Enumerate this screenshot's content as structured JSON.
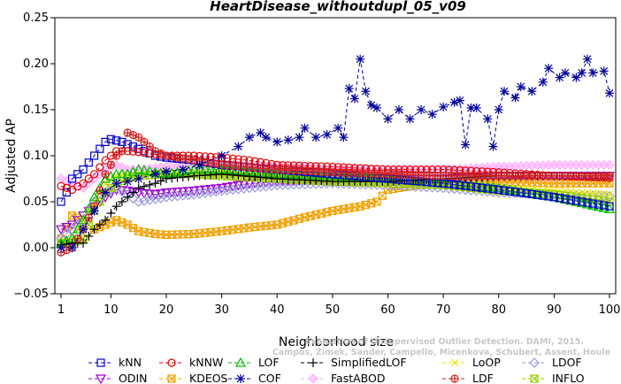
{
  "chart_data": {
    "type": "line",
    "title": "HeartDisease_withoutdupl_05_v09",
    "xlabel": "Neighborhood size",
    "ylabel": "Adjusted AP",
    "xlim": [
      1,
      100
    ],
    "ylim": [
      -0.05,
      0.25
    ],
    "xticks": [
      1,
      10,
      20,
      30,
      40,
      50,
      60,
      70,
      80,
      90,
      100
    ],
    "yticks": [
      -0.05,
      0.0,
      0.05,
      0.1,
      0.15,
      0.2,
      0.25
    ],
    "ytick_labels": [
      "−0.05",
      "0.00",
      "0.05",
      "0.10",
      "0.15",
      "0.20",
      "0.25"
    ],
    "watermark": [
      "Evaluation of Unsupervised Outlier Detection. DAMI, 2015.",
      "Campos, Zimek, Sander, Campello, Micenkova, Schubert, Assent, Houle"
    ],
    "legend_position": "bottom",
    "series": [
      {
        "name": "kNN",
        "color": "#0000cc",
        "marker": "square",
        "dash": "4,3",
        "points": [
          [
            1,
            0.05
          ],
          [
            2,
            0.06
          ],
          [
            3,
            0.075
          ],
          [
            5,
            0.085
          ],
          [
            7,
            0.1
          ],
          [
            9,
            0.115
          ],
          [
            10,
            0.118
          ],
          [
            12,
            0.115
          ],
          [
            14,
            0.11
          ],
          [
            16,
            0.105
          ],
          [
            18,
            0.1
          ],
          [
            20,
            0.098
          ],
          [
            25,
            0.095
          ],
          [
            30,
            0.09
          ],
          [
            40,
            0.085
          ],
          [
            50,
            0.08
          ],
          [
            60,
            0.075
          ],
          [
            70,
            0.07
          ],
          [
            80,
            0.063
          ],
          [
            90,
            0.055
          ],
          [
            100,
            0.045
          ]
        ]
      },
      {
        "name": "kNNW",
        "color": "#e00000",
        "marker": "circle",
        "dash": "4,3",
        "points": [
          [
            1,
            0.067
          ],
          [
            3,
            0.063
          ],
          [
            5,
            0.07
          ],
          [
            7,
            0.08
          ],
          [
            9,
            0.095
          ],
          [
            11,
            0.105
          ],
          [
            13,
            0.105
          ],
          [
            15,
            0.104
          ],
          [
            20,
            0.1
          ],
          [
            25,
            0.1
          ],
          [
            30,
            0.098
          ],
          [
            35,
            0.095
          ],
          [
            40,
            0.09
          ],
          [
            50,
            0.088
          ],
          [
            60,
            0.085
          ],
          [
            70,
            0.085
          ],
          [
            80,
            0.082
          ],
          [
            90,
            0.078
          ],
          [
            100,
            0.076
          ]
        ]
      },
      {
        "name": "LOF",
        "color": "#00bb00",
        "marker": "triangle",
        "dash": "4,3",
        "points": [
          [
            1,
            0.005
          ],
          [
            3,
            0.01
          ],
          [
            5,
            0.03
          ],
          [
            7,
            0.055
          ],
          [
            9,
            0.075
          ],
          [
            11,
            0.08
          ],
          [
            13,
            0.08
          ],
          [
            15,
            0.085
          ],
          [
            20,
            0.08
          ],
          [
            25,
            0.085
          ],
          [
            30,
            0.085
          ],
          [
            40,
            0.08
          ],
          [
            50,
            0.078
          ],
          [
            60,
            0.075
          ],
          [
            70,
            0.07
          ],
          [
            80,
            0.065
          ],
          [
            90,
            0.055
          ],
          [
            100,
            0.042
          ]
        ]
      },
      {
        "name": "SimplifiedLOF",
        "color": "#000000",
        "marker": "plus",
        "dash": "4,3",
        "points": [
          [
            1,
            0.003
          ],
          [
            3,
            0.005
          ],
          [
            5,
            0.005
          ],
          [
            7,
            0.02
          ],
          [
            9,
            0.03
          ],
          [
            11,
            0.045
          ],
          [
            13,
            0.055
          ],
          [
            15,
            0.065
          ],
          [
            18,
            0.07
          ],
          [
            20,
            0.075
          ],
          [
            25,
            0.078
          ],
          [
            30,
            0.08
          ],
          [
            40,
            0.075
          ],
          [
            50,
            0.072
          ],
          [
            60,
            0.072
          ],
          [
            70,
            0.075
          ],
          [
            80,
            0.078
          ],
          [
            90,
            0.078
          ],
          [
            100,
            0.078
          ]
        ]
      },
      {
        "name": "LoOP",
        "color": "#e8e800",
        "marker": "x",
        "dash": "4,3",
        "points": [
          [
            1,
            0.005
          ],
          [
            3,
            0.01
          ],
          [
            5,
            0.03
          ],
          [
            7,
            0.05
          ],
          [
            9,
            0.07
          ],
          [
            11,
            0.078
          ],
          [
            15,
            0.08
          ],
          [
            20,
            0.08
          ],
          [
            25,
            0.08
          ],
          [
            30,
            0.082
          ],
          [
            40,
            0.078
          ],
          [
            50,
            0.075
          ],
          [
            60,
            0.073
          ],
          [
            70,
            0.07
          ],
          [
            80,
            0.065
          ],
          [
            90,
            0.062
          ],
          [
            100,
            0.058
          ]
        ]
      },
      {
        "name": "LDOF",
        "color": "#9999dd",
        "marker": "diamond",
        "dash": "4,3",
        "points": [
          [
            1,
            0.01
          ],
          [
            3,
            0.02
          ],
          [
            5,
            0.03
          ],
          [
            7,
            0.05
          ],
          [
            9,
            0.06
          ],
          [
            11,
            0.065
          ],
          [
            15,
            0.05
          ],
          [
            20,
            0.055
          ],
          [
            25,
            0.058
          ],
          [
            30,
            0.062
          ],
          [
            40,
            0.068
          ],
          [
            50,
            0.07
          ],
          [
            60,
            0.068
          ],
          [
            70,
            0.065
          ],
          [
            80,
            0.06
          ],
          [
            90,
            0.058
          ],
          [
            100,
            0.056
          ]
        ]
      },
      {
        "name": "ODIN",
        "color": "#9900cc",
        "marker": "triangle-down",
        "dash": "4,3",
        "points": [
          [
            1,
            0.02
          ],
          [
            3,
            0.025
          ],
          [
            5,
            0.035
          ],
          [
            7,
            0.045
          ],
          [
            9,
            0.055
          ],
          [
            11,
            0.063
          ],
          [
            13,
            0.062
          ],
          [
            15,
            0.06
          ],
          [
            18,
            0.058
          ],
          [
            20,
            0.06
          ],
          [
            25,
            0.062
          ],
          [
            30,
            0.065
          ],
          [
            35,
            0.07
          ],
          [
            40,
            0.072
          ],
          [
            50,
            0.075
          ],
          [
            60,
            0.075
          ],
          [
            70,
            0.075
          ],
          [
            80,
            0.078
          ],
          [
            90,
            0.078
          ],
          [
            100,
            0.078
          ]
        ]
      },
      {
        "name": "KDEOS",
        "color": "#f0a000",
        "marker": "square-x",
        "dash": "4,3",
        "points": [
          [
            1,
            0.01
          ],
          [
            3,
            0.035
          ],
          [
            5,
            0.03
          ],
          [
            7,
            0.02
          ],
          [
            9,
            0.025
          ],
          [
            11,
            0.03
          ],
          [
            13,
            0.025
          ],
          [
            15,
            0.018
          ],
          [
            18,
            0.015
          ],
          [
            20,
            0.014
          ],
          [
            25,
            0.015
          ],
          [
            30,
            0.018
          ],
          [
            35,
            0.022
          ],
          [
            40,
            0.025
          ],
          [
            45,
            0.033
          ],
          [
            50,
            0.04
          ],
          [
            55,
            0.045
          ],
          [
            58,
            0.05
          ],
          [
            60,
            0.063
          ],
          [
            65,
            0.068
          ],
          [
            70,
            0.07
          ],
          [
            80,
            0.072
          ],
          [
            90,
            0.07
          ],
          [
            100,
            0.07
          ]
        ]
      },
      {
        "name": "COF",
        "color": "#000099",
        "marker": "asterisk",
        "dash": "4,3",
        "points": [
          [
            1,
            0.0
          ],
          [
            3,
            0.0
          ],
          [
            5,
            0.02
          ],
          [
            7,
            0.04
          ],
          [
            9,
            0.06
          ],
          [
            11,
            0.07
          ],
          [
            13,
            0.072
          ],
          [
            15,
            0.075
          ],
          [
            18,
            0.08
          ],
          [
            20,
            0.083
          ],
          [
            23,
            0.085
          ],
          [
            26,
            0.09
          ],
          [
            30,
            0.1
          ],
          [
            33,
            0.11
          ],
          [
            35,
            0.12
          ],
          [
            37,
            0.125
          ],
          [
            38,
            0.12
          ],
          [
            40,
            0.115
          ],
          [
            42,
            0.117
          ],
          [
            44,
            0.12
          ],
          [
            45,
            0.13
          ],
          [
            47,
            0.12
          ],
          [
            49,
            0.123
          ],
          [
            51,
            0.13
          ],
          [
            52,
            0.12
          ],
          [
            53,
            0.173
          ],
          [
            54,
            0.162
          ],
          [
            55,
            0.205
          ],
          [
            56,
            0.17
          ],
          [
            57,
            0.155
          ],
          [
            58,
            0.152
          ],
          [
            60,
            0.14
          ],
          [
            62,
            0.15
          ],
          [
            64,
            0.14
          ],
          [
            66,
            0.15
          ],
          [
            68,
            0.145
          ],
          [
            70,
            0.153
          ],
          [
            72,
            0.158
          ],
          [
            73,
            0.16
          ],
          [
            74,
            0.112
          ],
          [
            75,
            0.152
          ],
          [
            76,
            0.152
          ],
          [
            78,
            0.14
          ],
          [
            79,
            0.11
          ],
          [
            80,
            0.15
          ],
          [
            81,
            0.17
          ],
          [
            83,
            0.163
          ],
          [
            84,
            0.175
          ],
          [
            86,
            0.17
          ],
          [
            88,
            0.18
          ],
          [
            89,
            0.195
          ],
          [
            91,
            0.185
          ],
          [
            92,
            0.19
          ],
          [
            94,
            0.185
          ],
          [
            95,
            0.19
          ],
          [
            96,
            0.205
          ],
          [
            97,
            0.19
          ],
          [
            99,
            0.192
          ],
          [
            100,
            0.168
          ]
        ]
      },
      {
        "name": "FastABOD",
        "color": "#ffb0ff",
        "marker": "diamond-filled",
        "dash": "4,3",
        "points": [
          [
            1,
            0.075
          ],
          [
            3,
            0.07
          ],
          [
            5,
            0.065
          ],
          [
            7,
            0.075
          ],
          [
            9,
            0.085
          ],
          [
            11,
            0.09
          ],
          [
            13,
            0.085
          ],
          [
            15,
            0.085
          ],
          [
            20,
            0.088
          ],
          [
            30,
            0.09
          ],
          [
            40,
            0.088
          ],
          [
            50,
            0.085
          ],
          [
            60,
            0.085
          ],
          [
            70,
            0.085
          ],
          [
            80,
            0.088
          ],
          [
            90,
            0.09
          ],
          [
            100,
            0.09
          ]
        ]
      },
      {
        "name": "LDF",
        "color": "#cc2222",
        "marker": "circle-plus",
        "dash": "4,3",
        "points": [
          [
            1,
            -0.005
          ],
          [
            3,
            0.0
          ],
          [
            5,
            0.02
          ],
          [
            7,
            0.045
          ],
          [
            9,
            0.08
          ],
          [
            11,
            0.1
          ],
          [
            12,
            0.105
          ],
          [
            13,
            0.125
          ],
          [
            15,
            0.12
          ],
          [
            18,
            0.105
          ],
          [
            20,
            0.1
          ],
          [
            25,
            0.095
          ],
          [
            30,
            0.09
          ],
          [
            40,
            0.085
          ],
          [
            50,
            0.082
          ],
          [
            60,
            0.08
          ],
          [
            70,
            0.078
          ],
          [
            80,
            0.078
          ],
          [
            90,
            0.078
          ],
          [
            100,
            0.078
          ]
        ]
      },
      {
        "name": "INFLO",
        "color": "#99cc00",
        "marker": "square-x",
        "dash": "4,3",
        "points": [
          [
            1,
            0.005
          ],
          [
            3,
            0.005
          ],
          [
            5,
            0.01
          ],
          [
            7,
            0.04
          ],
          [
            9,
            0.06
          ],
          [
            11,
            0.07
          ],
          [
            13,
            0.075
          ],
          [
            15,
            0.078
          ],
          [
            20,
            0.08
          ],
          [
            25,
            0.08
          ],
          [
            30,
            0.078
          ],
          [
            40,
            0.075
          ],
          [
            50,
            0.072
          ],
          [
            60,
            0.07
          ],
          [
            70,
            0.068
          ],
          [
            80,
            0.062
          ],
          [
            90,
            0.058
          ],
          [
            100,
            0.05
          ]
        ]
      }
    ]
  }
}
